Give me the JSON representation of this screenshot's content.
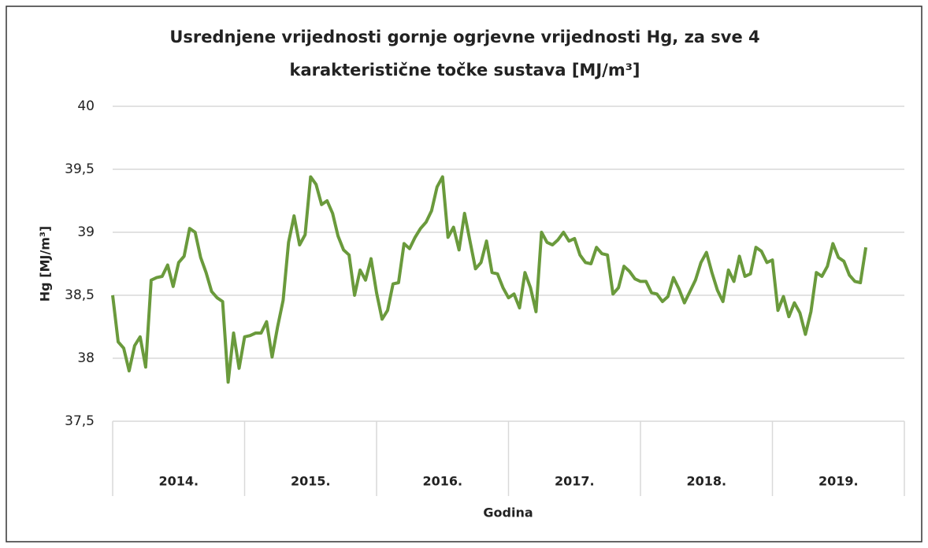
{
  "chart_data": {
    "type": "line",
    "title": [
      "Usrednjene vrijednosti gornje ogrjevne vrijednosti Hg, za sve 4",
      "karakteristične točke sustava [MJ/m³]"
    ],
    "y_label": "Hg [MJ/m³]",
    "x_label": "Godina",
    "categories": [
      "2014.",
      "2015.",
      "2016.",
      "2017.",
      "2018.",
      "2019."
    ],
    "series": [
      {
        "color": "#6a9a3c",
        "values": [
          [
            38.5,
            38.13,
            38.08,
            37.9,
            38.1,
            38.17,
            37.93,
            38.62,
            38.64,
            38.65,
            38.74,
            38.57,
            38.76,
            38.81,
            39.03,
            39.0,
            38.8,
            38.68,
            38.53,
            38.48,
            38.45,
            37.81,
            38.2,
            37.92
          ],
          [
            38.17,
            38.18,
            38.2,
            38.2,
            38.29,
            38.01,
            38.25,
            38.46,
            38.92,
            39.13,
            38.9,
            38.98,
            39.44,
            39.38,
            39.22,
            39.25,
            39.15,
            38.97,
            38.86,
            38.82,
            38.5,
            38.7,
            38.62,
            38.79
          ],
          [
            38.52,
            38.31,
            38.38,
            38.59,
            38.6,
            38.91,
            38.87,
            38.96,
            39.03,
            39.08,
            39.17,
            39.36,
            39.44,
            38.96,
            39.04,
            38.86,
            39.15,
            38.93,
            38.71,
            38.76,
            38.93,
            38.68,
            38.67,
            38.56
          ],
          [
            38.48,
            38.51,
            38.4,
            38.68,
            38.56,
            38.37,
            39.0,
            38.92,
            38.9,
            38.94,
            39.0,
            38.93,
            38.95,
            38.82,
            38.76,
            38.75,
            38.88,
            38.83,
            38.82,
            38.51,
            38.56,
            38.73,
            38.69,
            38.63
          ],
          [
            38.61,
            38.61,
            38.52,
            38.51,
            38.45,
            38.49,
            38.64,
            38.55,
            38.44,
            38.53,
            38.62,
            38.76,
            38.84,
            38.68,
            38.54,
            38.45,
            38.7,
            38.61,
            38.81,
            38.65,
            38.67,
            38.88,
            38.85,
            38.76
          ],
          [
            38.78,
            38.38,
            38.49,
            38.33,
            38.44,
            38.36,
            38.19,
            38.37,
            38.68,
            38.65,
            38.73,
            38.91,
            38.8,
            38.77,
            38.66,
            38.61,
            38.6,
            38.88
          ]
        ]
      }
    ],
    "ylim": [
      37.5,
      40
    ],
    "yticks": [
      {
        "value": 37.5,
        "label": "37,5"
      },
      38,
      {
        "value": 38.5,
        "label": "38,5"
      },
      39,
      {
        "value": 39.5,
        "label": "39,5"
      },
      40
    ],
    "grid": true
  }
}
